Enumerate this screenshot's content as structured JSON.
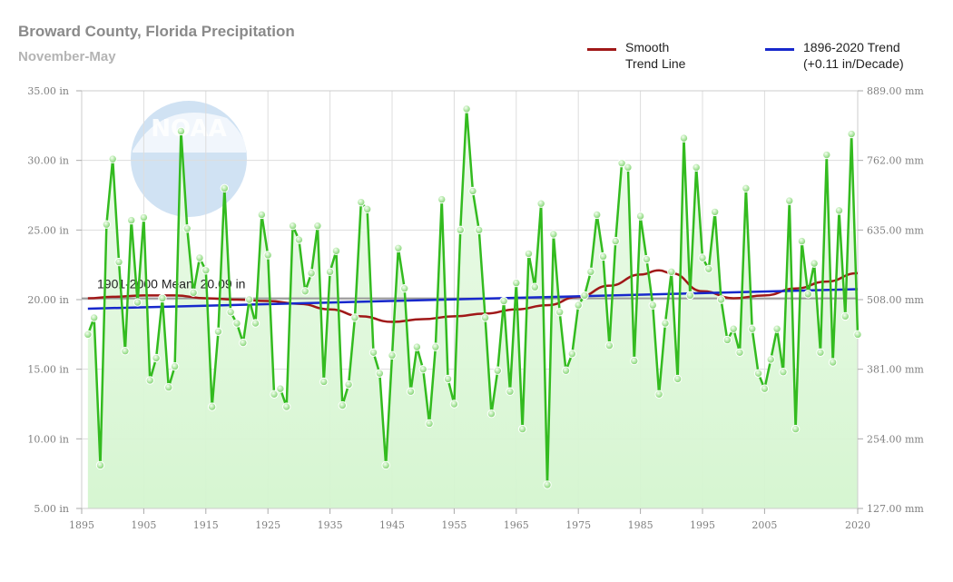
{
  "header": {
    "title": "Broward County, Florida Precipitation",
    "subtitle": "November-May"
  },
  "colors": {
    "series_line": "#33bb1f",
    "series_fill": "#d4f5cf",
    "smooth_trend": "#a01818",
    "linear_trend": "#1728cc",
    "mean_line": "#9a9a9a",
    "grid": "#dddddd"
  },
  "icons": {
    "watermark": "noaa-logo"
  },
  "chart_data": {
    "type": "area",
    "title": "Broward County, Florida Precipitation",
    "subtitle": "November-May",
    "x_range": [
      1895,
      2020
    ],
    "ylim": [
      5,
      35
    ],
    "x_ticks": [
      "1895",
      "1905",
      "1915",
      "1925",
      "1935",
      "1945",
      "1955",
      "1965",
      "1975",
      "1985",
      "1995",
      "2005",
      "2020"
    ],
    "y_ticks_left": [
      "5.00 in",
      "10.00 in",
      "15.00 in",
      "20.00 in",
      "25.00 in",
      "30.00 in",
      "35.00 in"
    ],
    "y_ticks_right": [
      "127.00 mm",
      "254.00 mm",
      "381.00 mm",
      "508.00 mm",
      "635.00 mm",
      "762.00 mm",
      "889.00 mm"
    ],
    "grid": true,
    "legend_position": "top-right",
    "mean_label": "1901-2000 Mean: 20.09 in",
    "mean_value": 20.09,
    "series": [
      {
        "x": [
          1896,
          1897,
          1898,
          1899,
          1900,
          1901,
          1902,
          1903,
          1904,
          1905,
          1906,
          1907,
          1908,
          1909,
          1910,
          1911,
          1912,
          1913,
          1914,
          1915,
          1916,
          1917,
          1918,
          1919,
          1920,
          1921,
          1922,
          1923,
          1924,
          1925,
          1926,
          1927,
          1928,
          1929,
          1930,
          1931,
          1932,
          1933,
          1934,
          1935,
          1936,
          1937,
          1938,
          1939,
          1940,
          1941,
          1942,
          1943,
          1944,
          1945,
          1946,
          1947,
          1948,
          1949,
          1950,
          1951,
          1952,
          1953,
          1954,
          1955,
          1956,
          1957,
          1958,
          1959,
          1960,
          1961,
          1962,
          1963,
          1964,
          1965,
          1966,
          1967,
          1968,
          1969,
          1970,
          1971,
          1972,
          1973,
          1974,
          1975,
          1976,
          1977,
          1978,
          1979,
          1980,
          1981,
          1982,
          1983,
          1984,
          1985,
          1986,
          1987,
          1988,
          1989,
          1990,
          1991,
          1992,
          1993,
          1994,
          1995,
          1996,
          1997,
          1998,
          1999,
          2000,
          2001,
          2002,
          2003,
          2004,
          2005,
          2006,
          2007,
          2008,
          2009,
          2010,
          2011,
          2012,
          2013,
          2014,
          2015,
          2016,
          2017,
          2018,
          2019,
          2020
        ],
        "values": [
          17.5,
          18.7,
          8.1,
          25.4,
          30.1,
          22.7,
          16.3,
          25.7,
          19.8,
          25.9,
          14.2,
          15.8,
          20.1,
          13.7,
          15.2,
          32.1,
          25.1,
          20.5,
          23.0,
          22.1,
          12.3,
          17.7,
          28.0,
          19.1,
          18.3,
          16.9,
          20.0,
          18.3,
          26.1,
          23.2,
          13.2,
          13.6,
          12.3,
          25.3,
          24.3,
          20.6,
          21.9,
          25.3,
          14.1,
          22.0,
          23.5,
          12.4,
          13.9,
          18.7,
          27.0,
          26.5,
          16.2,
          14.7,
          8.1,
          16.0,
          23.7,
          20.8,
          13.4,
          16.6,
          15.0,
          11.1,
          16.6,
          27.2,
          14.3,
          12.5,
          25.0,
          33.7,
          27.8,
          25.0,
          18.7,
          11.8,
          14.9,
          19.9,
          13.4,
          21.2,
          10.7,
          23.3,
          20.9,
          26.9,
          6.7,
          24.7,
          19.1,
          14.9,
          16.1,
          19.6,
          20.3,
          22.0,
          26.1,
          23.1,
          16.7,
          24.2,
          29.8,
          29.5,
          15.6,
          26.0,
          22.9,
          19.6,
          13.2,
          18.3,
          22.0,
          14.3,
          31.6,
          20.3,
          29.5,
          23.0,
          22.2,
          26.3,
          20.0,
          17.1,
          17.9,
          16.2,
          28.0,
          17.9,
          14.7,
          13.6,
          15.7,
          17.9,
          14.8,
          27.1,
          10.7,
          24.2,
          20.4,
          22.6,
          16.2,
          30.4,
          15.5,
          26.4,
          18.8,
          31.9,
          17.5
        ]
      },
      {
        "name": "Smooth\nTrend Line",
        "x": [
          1896,
          1900,
          1905,
          1910,
          1915,
          1920,
          1925,
          1930,
          1935,
          1940,
          1945,
          1950,
          1955,
          1960,
          1965,
          1970,
          1975,
          1980,
          1985,
          1988,
          1990,
          1995,
          2000,
          2005,
          2010,
          2015,
          2020
        ],
        "values": [
          20.1,
          20.2,
          20.3,
          20.3,
          20.1,
          20.0,
          19.9,
          19.7,
          19.3,
          18.8,
          18.4,
          18.6,
          18.8,
          19.0,
          19.3,
          19.6,
          20.2,
          21.0,
          21.8,
          22.1,
          21.9,
          20.6,
          20.1,
          20.3,
          20.8,
          21.3,
          21.9
        ]
      },
      {
        "name": "1896-2020 Trend\n(+0.11 in/Decade)",
        "x": [
          1896,
          2020
        ],
        "values": [
          19.35,
          20.75
        ]
      }
    ]
  }
}
